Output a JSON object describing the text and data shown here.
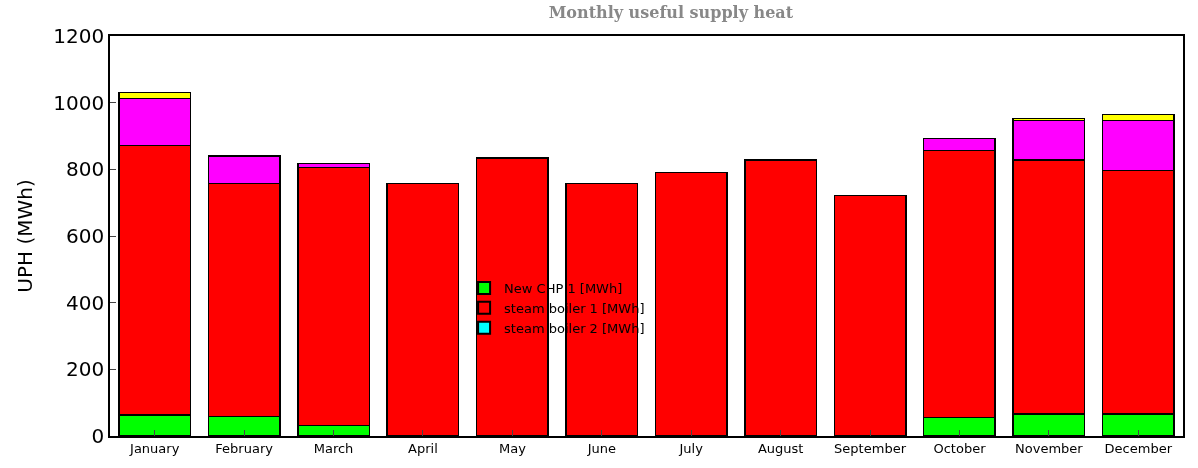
{
  "chart_data": {
    "type": "bar",
    "title": "Monthly useful supply heat",
    "ylabel": "UPH (MWh)",
    "categories": [
      "January",
      "February",
      "March",
      "April",
      "May",
      "June",
      "July",
      "August",
      "September",
      "October",
      "November",
      "December"
    ],
    "stacked": true,
    "ylim": [
      0,
      1200
    ],
    "yticks": [
      0,
      200,
      400,
      600,
      800,
      1000,
      1200
    ],
    "legend": "center",
    "series": [
      {
        "name": "New CHP 1 [MWh]",
        "color": "#00ff00",
        "values": [
          63,
          59,
          31,
          2,
          2,
          2,
          2,
          2,
          2,
          56,
          66,
          66
        ]
      },
      {
        "name": "steam boiler 1 [MWh]",
        "color": "#ff0000",
        "values": [
          809,
          698,
          775,
          755,
          832,
          755,
          789,
          826,
          719,
          800,
          762,
          731
        ]
      },
      {
        "name": "steam boiler 2 [MWh]",
        "color": "#00ffff",
        "values": [
          0,
          0,
          0,
          0,
          0,
          0,
          0,
          0,
          0,
          0,
          0,
          0
        ]
      },
      {
        "color": "#ff00ff",
        "values": [
          140,
          83,
          11,
          0,
          0,
          0,
          0,
          0,
          0,
          37,
          119,
          150
        ]
      },
      {
        "color": "#ffff00",
        "values": [
          18,
          0,
          0,
          0,
          0,
          0,
          0,
          0,
          0,
          0,
          5,
          17
        ]
      }
    ]
  }
}
